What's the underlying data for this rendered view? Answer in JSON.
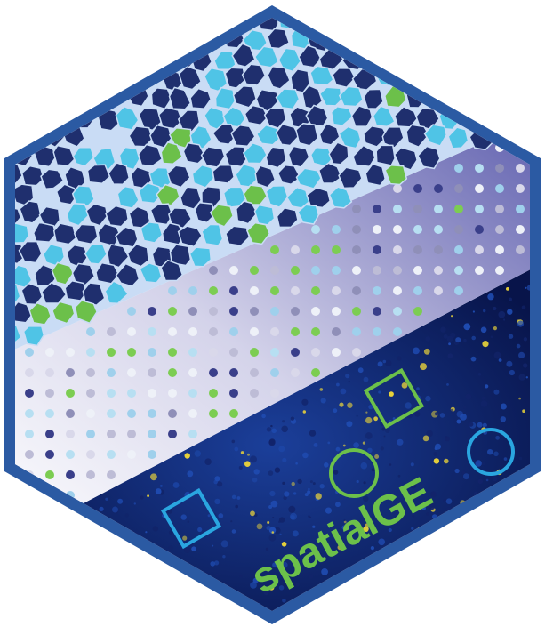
{
  "logo": {
    "name": "spatialGE",
    "colors": {
      "border": "#2b5aa3",
      "cell_dark": "#1f2f6e",
      "cell_light": "#4fc4e6",
      "cell_green": "#6cc04a",
      "cell_line": "#c9dcf5",
      "grid_bg_top": "#6f6fb8",
      "grid_bg_bottom": "#ffffff",
      "tissue_bg": "#0c1a55",
      "tissue_blue": "#1f4bb0",
      "tissue_yellow": "#e8d23a",
      "marker_blue": "#2aa6e0",
      "marker_green": "#6cc04a",
      "text_green": "#6cc04a"
    }
  }
}
